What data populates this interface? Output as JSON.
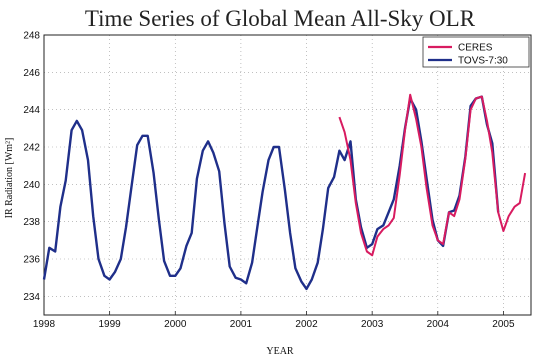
{
  "chart_data": {
    "type": "line",
    "title": "Time Series of Global Mean All-Sky OLR",
    "xlabel": "YEAR",
    "ylabel": "IR Radiation [Wm²]",
    "xlim": [
      1998,
      2005.42
    ],
    "ylim": [
      233,
      248
    ],
    "x_ticks": [
      1998,
      1999,
      2000,
      2001,
      2002,
      2003,
      2004,
      2005
    ],
    "y_ticks": [
      234,
      236,
      238,
      240,
      242,
      244,
      246,
      248
    ],
    "grid": true,
    "legend_position": "top-right",
    "series": [
      {
        "name": "TOVS-7:30",
        "color": "#1f2f8a",
        "x": [
          1998.0,
          1998.08,
          1998.17,
          1998.25,
          1998.33,
          1998.42,
          1998.5,
          1998.58,
          1998.67,
          1998.75,
          1998.83,
          1998.92,
          1999.0,
          1999.08,
          1999.17,
          1999.25,
          1999.33,
          1999.42,
          1999.5,
          1999.58,
          1999.67,
          1999.75,
          1999.83,
          1999.92,
          2000.0,
          2000.08,
          2000.17,
          2000.25,
          2000.33,
          2000.42,
          2000.5,
          2000.58,
          2000.67,
          2000.75,
          2000.83,
          2000.92,
          2001.0,
          2001.08,
          2001.17,
          2001.25,
          2001.33,
          2001.42,
          2001.5,
          2001.58,
          2001.67,
          2001.75,
          2001.83,
          2001.92,
          2002.0,
          2002.08,
          2002.17,
          2002.25,
          2002.33,
          2002.42,
          2002.5,
          2002.58,
          2002.67,
          2002.75,
          2002.83,
          2002.92,
          2003.0,
          2003.08,
          2003.17,
          2003.25,
          2003.33,
          2003.42,
          2003.5,
          2003.58,
          2003.67,
          2003.75,
          2003.83,
          2003.92,
          2004.0,
          2004.08,
          2004.17,
          2004.25,
          2004.33,
          2004.42,
          2004.5,
          2004.58,
          2004.67,
          2004.75,
          2004.83,
          2004.92
        ],
        "y": [
          234.9,
          236.6,
          236.4,
          238.8,
          240.2,
          242.9,
          243.4,
          242.9,
          241.3,
          238.3,
          236.0,
          235.1,
          234.9,
          235.3,
          236.0,
          237.7,
          239.8,
          242.1,
          242.6,
          242.6,
          240.6,
          238.1,
          235.9,
          235.1,
          235.1,
          235.5,
          236.7,
          237.4,
          240.3,
          241.8,
          242.3,
          241.7,
          240.7,
          237.9,
          235.6,
          235.0,
          234.9,
          234.7,
          235.8,
          237.7,
          239.6,
          241.3,
          242.0,
          242.0,
          239.7,
          237.4,
          235.5,
          234.8,
          234.4,
          234.9,
          235.8,
          237.6,
          239.8,
          240.4,
          241.8,
          241.3,
          242.3,
          239.2,
          237.7,
          236.6,
          236.8,
          237.6,
          237.8,
          238.5,
          239.2,
          241.0,
          243.0,
          244.6,
          244.0,
          242.3,
          240.3,
          238.1,
          237.0,
          236.7,
          238.5,
          238.6,
          239.4,
          241.5,
          244.2,
          244.6,
          244.7,
          243.2,
          242.2,
          238.5
        ]
      },
      {
        "name": "CERES",
        "color": "#d81b60",
        "x": [
          2002.5,
          2002.58,
          2002.67,
          2002.75,
          2002.83,
          2002.92,
          2003.0,
          2003.08,
          2003.17,
          2003.25,
          2003.33,
          2003.42,
          2003.5,
          2003.58,
          2003.67,
          2003.75,
          2003.83,
          2003.92,
          2004.0,
          2004.08,
          2004.17,
          2004.25,
          2004.33,
          2004.42,
          2004.5,
          2004.58,
          2004.67,
          2004.75,
          2004.83,
          2004.92,
          2005.0,
          2005.08,
          2005.17,
          2005.25,
          2005.33
        ],
        "y": [
          243.6,
          242.8,
          241.3,
          239.0,
          237.4,
          236.4,
          236.2,
          237.2,
          237.6,
          237.8,
          238.2,
          240.5,
          242.9,
          244.8,
          243.5,
          242.0,
          239.8,
          237.8,
          237.0,
          236.8,
          238.5,
          238.3,
          239.2,
          241.4,
          244.0,
          244.6,
          244.7,
          243.4,
          241.7,
          238.5,
          237.5,
          238.3,
          238.8,
          239.0,
          240.6
        ]
      }
    ]
  }
}
